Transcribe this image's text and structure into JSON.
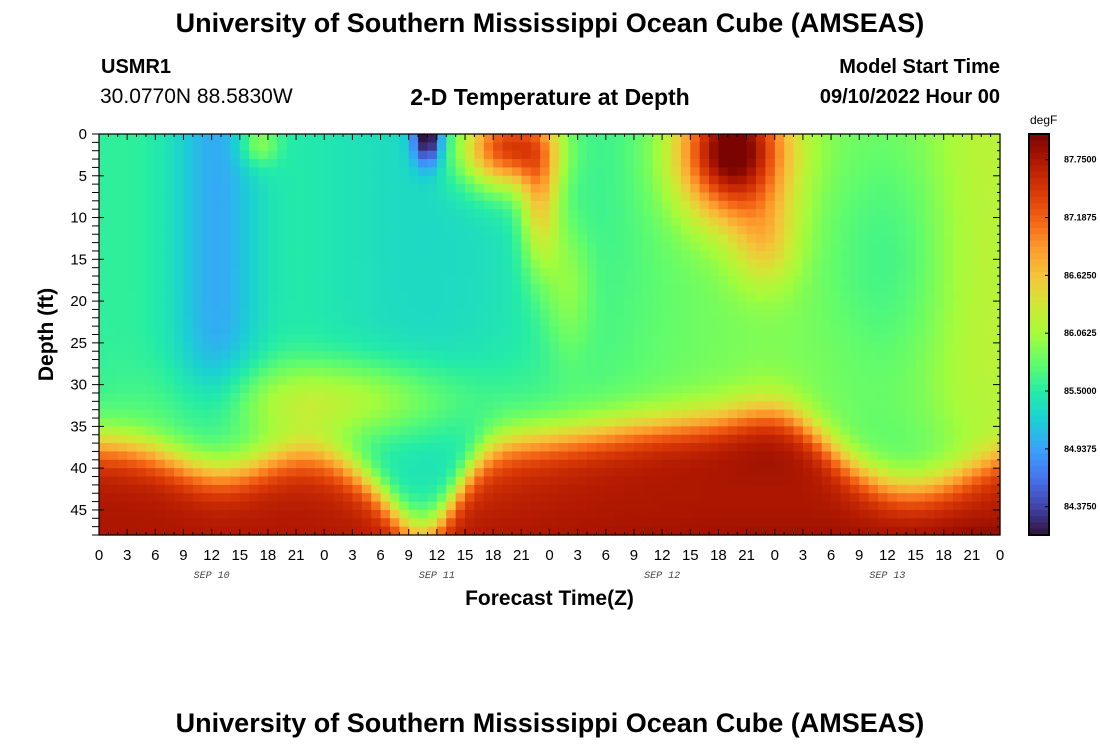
{
  "header": {
    "title": "University of Southern Mississippi Ocean Cube (AMSEAS)",
    "station": "USMR1",
    "coords": "30.0770N  88.5830W",
    "subtitle": "2-D Temperature at Depth",
    "model_start_label": "Model Start Time",
    "model_start_value": "09/10/2022 Hour 00"
  },
  "footer": {
    "title": "University of Southern Mississippi Ocean Cube (AMSEAS)"
  },
  "colors": {
    "colormap": [
      "#30123b",
      "#4145ab",
      "#4675ed",
      "#39a2fc",
      "#1bcfd4",
      "#24eca6",
      "#61fc6c",
      "#a4fc3b",
      "#d1e834",
      "#f3c63a",
      "#fe9b2d",
      "#f36315",
      "#d93806",
      "#b11901",
      "#7a0402"
    ]
  },
  "chart_data": {
    "type": "heatmap",
    "title": "2-D Temperature at Depth",
    "xlabel": "Forecast Time(Z)",
    "ylabel": "Depth (ft)",
    "x_ticks": [
      "0",
      "3",
      "6",
      "9",
      "12",
      "15",
      "18",
      "21",
      "0",
      "3",
      "6",
      "9",
      "12",
      "15",
      "18",
      "21",
      "0",
      "3",
      "6",
      "9",
      "12",
      "15",
      "18",
      "21",
      "0",
      "3",
      "6",
      "9",
      "12",
      "15",
      "18",
      "21",
      "0"
    ],
    "x_hours_range": [
      0,
      96
    ],
    "day_labels": [
      {
        "label": "SEP 10",
        "hour": 12
      },
      {
        "label": "SEP 11",
        "hour": 36
      },
      {
        "label": "SEP 12",
        "hour": 60
      },
      {
        "label": "SEP 13",
        "hour": 84
      }
    ],
    "y_ticks": [
      "0",
      "5",
      "10",
      "15",
      "20",
      "25",
      "30",
      "35",
      "40",
      "45"
    ],
    "ylim": [
      0,
      48
    ],
    "colorbar": {
      "unit": "degF",
      "range": [
        84.1,
        88.0
      ],
      "ticks": [
        "87.7500",
        "87.1875",
        "86.6250",
        "86.0625",
        "85.5000",
        "84.9375",
        "84.3750"
      ]
    }
  }
}
